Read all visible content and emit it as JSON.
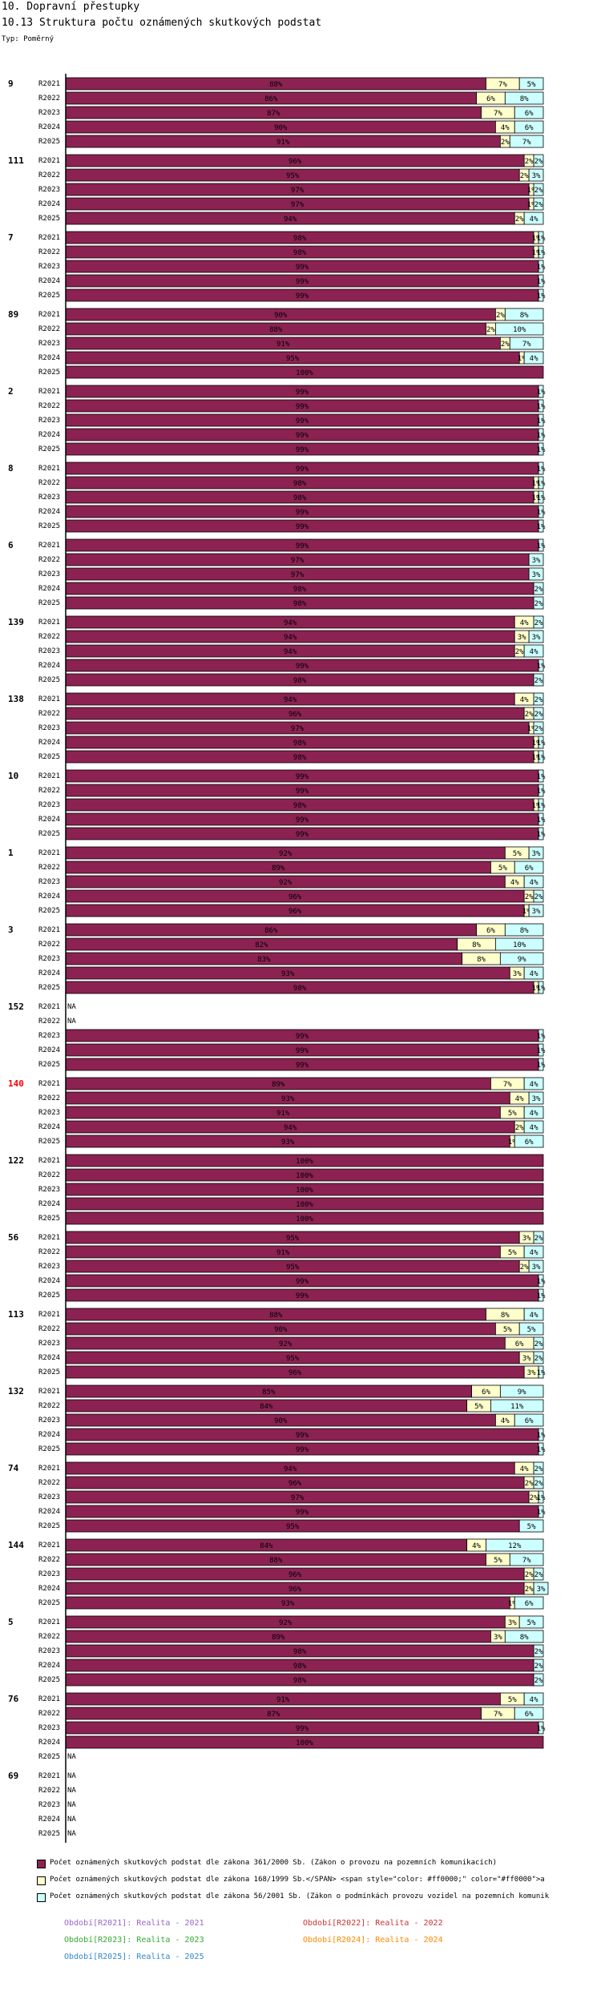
{
  "header": {
    "section": "10. Dopravní přestupky",
    "title": "10.13 Struktura počtu oznámených skutkových podstat",
    "type_label": "Typ: Poměrný"
  },
  "colors": {
    "s1": "#8b2252",
    "s2": "#ffffcc",
    "s3": "#ccffff",
    "highlight": "#ff0000"
  },
  "chart_data": {
    "type": "bar",
    "orientation": "horizontal-stacked-percent",
    "title": "10.13 Struktura počtu oznámených skutkových podstat",
    "na_label": "NA",
    "periods": [
      "R2021",
      "R2022",
      "R2023",
      "R2024",
      "R2025"
    ],
    "series": [
      {
        "name": "Počet oznámených skutkových podstat dle zákona 361/2000 Sb. (Zákon o provozu na pozemních komunikacích)"
      },
      {
        "name": "Počet oznámených skutkových podstat dle zákona 168/1999 Sb.</SPAN> <span style=\"color: #ff0000;\" color=\"#ff0000\">a"
      },
      {
        "name": "Počet oznámených skutkových podstat dle zákona 56/2001 Sb. (Zákon o podmínkách provozu vozidel na pozemních komunik"
      }
    ],
    "groups": [
      {
        "label": "9",
        "highlight": false,
        "rows": [
          [
            88,
            7,
            5
          ],
          [
            86,
            6,
            8
          ],
          [
            87,
            7,
            6
          ],
          [
            90,
            4,
            6
          ],
          [
            91,
            2,
            7
          ]
        ]
      },
      {
        "label": "111",
        "highlight": false,
        "rows": [
          [
            96,
            2,
            2
          ],
          [
            95,
            2,
            3
          ],
          [
            97,
            1,
            2
          ],
          [
            97,
            1,
            2
          ],
          [
            94,
            2,
            4
          ]
        ]
      },
      {
        "label": "7",
        "highlight": false,
        "rows": [
          [
            98,
            1,
            1
          ],
          [
            98,
            1,
            1
          ],
          [
            99,
            0,
            1
          ],
          [
            99,
            0,
            1
          ],
          [
            99,
            0,
            1
          ]
        ]
      },
      {
        "label": "89",
        "highlight": false,
        "rows": [
          [
            90,
            2,
            8
          ],
          [
            88,
            2,
            10
          ],
          [
            91,
            2,
            7
          ],
          [
            95,
            1,
            4
          ],
          [
            100,
            0,
            0
          ]
        ]
      },
      {
        "label": "2",
        "highlight": false,
        "rows": [
          [
            99,
            0,
            1
          ],
          [
            99,
            0,
            1
          ],
          [
            99,
            0,
            1
          ],
          [
            99,
            0,
            1
          ],
          [
            99,
            0,
            1
          ]
        ]
      },
      {
        "label": "8",
        "highlight": false,
        "rows": [
          [
            99,
            0,
            1
          ],
          [
            98,
            1,
            1
          ],
          [
            98,
            1,
            1
          ],
          [
            99,
            0,
            1
          ],
          [
            99,
            0,
            1
          ]
        ]
      },
      {
        "label": "6",
        "highlight": false,
        "rows": [
          [
            99,
            0,
            1
          ],
          [
            97,
            0,
            3
          ],
          [
            97,
            0,
            3
          ],
          [
            98,
            0,
            2
          ],
          [
            98,
            0,
            2
          ]
        ]
      },
      {
        "label": "139",
        "highlight": false,
        "rows": [
          [
            94,
            4,
            2
          ],
          [
            94,
            3,
            3
          ],
          [
            94,
            2,
            4
          ],
          [
            99,
            0,
            1
          ],
          [
            98,
            0,
            2
          ]
        ]
      },
      {
        "label": "138",
        "highlight": false,
        "rows": [
          [
            94,
            4,
            2
          ],
          [
            96,
            2,
            2
          ],
          [
            97,
            1,
            2
          ],
          [
            98,
            1,
            1
          ],
          [
            98,
            1,
            1
          ]
        ]
      },
      {
        "label": "10",
        "highlight": false,
        "rows": [
          [
            99,
            0,
            1
          ],
          [
            99,
            0,
            1
          ],
          [
            98,
            1,
            1
          ],
          [
            99,
            0,
            1
          ],
          [
            99,
            0,
            1
          ]
        ]
      },
      {
        "label": "1",
        "highlight": false,
        "rows": [
          [
            92,
            5,
            3
          ],
          [
            89,
            5,
            6
          ],
          [
            92,
            4,
            4
          ],
          [
            96,
            2,
            2
          ],
          [
            96,
            1,
            3
          ]
        ]
      },
      {
        "label": "3",
        "highlight": false,
        "rows": [
          [
            86,
            6,
            8
          ],
          [
            82,
            8,
            10
          ],
          [
            83,
            8,
            9
          ],
          [
            93,
            3,
            4
          ],
          [
            98,
            1,
            1
          ]
        ]
      },
      {
        "label": "152",
        "highlight": false,
        "rows": [
          null,
          null,
          [
            99,
            0,
            1
          ],
          [
            99,
            0,
            1
          ],
          [
            99,
            0,
            1
          ]
        ]
      },
      {
        "label": "140",
        "highlight": true,
        "rows": [
          [
            89,
            7,
            4
          ],
          [
            93,
            4,
            3
          ],
          [
            91,
            5,
            4
          ],
          [
            94,
            2,
            4
          ],
          [
            93,
            1,
            6
          ]
        ]
      },
      {
        "label": "122",
        "highlight": false,
        "rows": [
          [
            100,
            0,
            0
          ],
          [
            100,
            0,
            0
          ],
          [
            100,
            0,
            0
          ],
          [
            100,
            0,
            0
          ],
          [
            100,
            0,
            0
          ]
        ]
      },
      {
        "label": "56",
        "highlight": false,
        "rows": [
          [
            95,
            3,
            2
          ],
          [
            91,
            5,
            4
          ],
          [
            95,
            2,
            3
          ],
          [
            99,
            0,
            1
          ],
          [
            99,
            0,
            1
          ]
        ]
      },
      {
        "label": "113",
        "highlight": false,
        "rows": [
          [
            88,
            8,
            4
          ],
          [
            90,
            5,
            5
          ],
          [
            92,
            6,
            2
          ],
          [
            95,
            3,
            2
          ],
          [
            96,
            3,
            1
          ]
        ]
      },
      {
        "label": "132",
        "highlight": false,
        "rows": [
          [
            85,
            6,
            9
          ],
          [
            84,
            5,
            11
          ],
          [
            90,
            4,
            6
          ],
          [
            99,
            0,
            1
          ],
          [
            99,
            0,
            1
          ]
        ]
      },
      {
        "label": "74",
        "highlight": false,
        "rows": [
          [
            94,
            4,
            2
          ],
          [
            96,
            2,
            2
          ],
          [
            97,
            2,
            1
          ],
          [
            99,
            0,
            1
          ],
          [
            95,
            0,
            5
          ]
        ]
      },
      {
        "label": "144",
        "highlight": false,
        "rows": [
          [
            84,
            4,
            12
          ],
          [
            88,
            5,
            7
          ],
          [
            96,
            2,
            2
          ],
          [
            96,
            2,
            3
          ],
          [
            93,
            1,
            6
          ]
        ]
      },
      {
        "label": "5",
        "highlight": false,
        "rows": [
          [
            92,
            3,
            5
          ],
          [
            89,
            3,
            8
          ],
          [
            98,
            0,
            2
          ],
          [
            98,
            0,
            2
          ],
          [
            98,
            0,
            2
          ]
        ]
      },
      {
        "label": "76",
        "highlight": false,
        "rows": [
          [
            91,
            5,
            4
          ],
          [
            87,
            7,
            6
          ],
          [
            99,
            0,
            1
          ],
          [
            100,
            0,
            0
          ],
          null
        ]
      },
      {
        "label": "69",
        "highlight": false,
        "rows": [
          null,
          null,
          null,
          null,
          null
        ]
      }
    ]
  },
  "legend": {
    "periods": [
      {
        "text": "Období[R2021]: Realita - 2021",
        "color": "#9966cc"
      },
      {
        "text": "Období[R2022]: Realita - 2022",
        "color": "#cc3333"
      },
      {
        "text": "Období[R2023]: Realita - 2023",
        "color": "#33aa33"
      },
      {
        "text": "Období[R2024]: Realita - 2024",
        "color": "#ff8800"
      },
      {
        "text": "Období[R2025]: Realita - 2025",
        "color": "#3388cc"
      }
    ]
  }
}
